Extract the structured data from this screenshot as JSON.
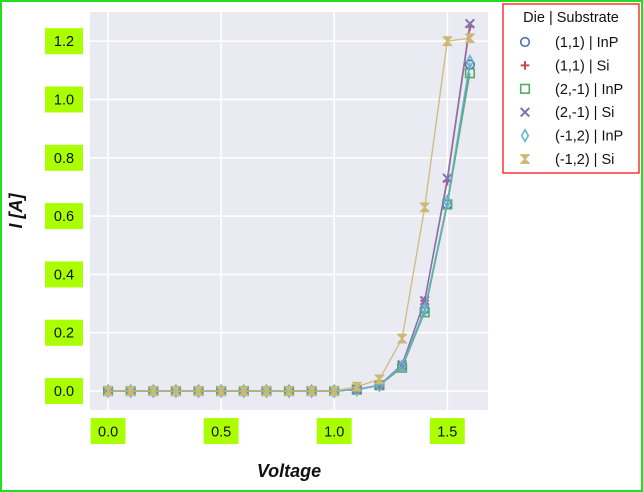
{
  "chart_data": {
    "type": "line",
    "title": "",
    "xlabel": "Voltage",
    "ylabel": "I [A]",
    "xlim": [
      -0.08,
      1.68
    ],
    "ylim": [
      -0.065,
      1.3
    ],
    "x_ticks": [
      "0.0",
      "0.5",
      "1.0",
      "1.5"
    ],
    "y_ticks": [
      "0.0",
      "0.2",
      "0.4",
      "0.6",
      "0.8",
      "1.0",
      "1.2"
    ],
    "x_tick_values": [
      0.0,
      0.5,
      1.0,
      1.5
    ],
    "y_tick_values": [
      0.0,
      0.2,
      0.4,
      0.6,
      0.8,
      1.0,
      1.2
    ],
    "grid": true,
    "legend_position": "outside-top-right",
    "legend_title": "Die | Substrate",
    "x": [
      0.0,
      0.1,
      0.2,
      0.3,
      0.4,
      0.5,
      0.6,
      0.7,
      0.8,
      0.9,
      1.0,
      1.1,
      1.2,
      1.3,
      1.4,
      1.5,
      1.6
    ],
    "series": [
      {
        "name": "(1,1) | InP",
        "marker": "circle",
        "color": "#4c72b0",
        "values": [
          0,
          0,
          0,
          0,
          0,
          0,
          0,
          0,
          0,
          0,
          0,
          0.005,
          0.02,
          0.085,
          0.28,
          0.64,
          1.12
        ]
      },
      {
        "name": "(1,1) | Si",
        "marker": "plus",
        "color": "#c44e52",
        "values": [
          0,
          0,
          0,
          0,
          0,
          0,
          0,
          0,
          0,
          0,
          0,
          0.005,
          0.02,
          0.09,
          0.31,
          0.72,
          1.25
        ]
      },
      {
        "name": "(2,-1) | InP",
        "marker": "square",
        "color": "#55a868",
        "values": [
          0,
          0,
          0,
          0,
          0,
          0,
          0,
          0,
          0,
          0,
          0,
          0.005,
          0.02,
          0.08,
          0.27,
          0.64,
          1.09
        ]
      },
      {
        "name": "(2,-1) | Si",
        "marker": "x",
        "color": "#8172b2",
        "values": [
          0,
          0,
          0,
          0,
          0,
          0,
          0,
          0,
          0,
          0,
          0,
          0.005,
          0.02,
          0.09,
          0.31,
          0.73,
          1.26
        ]
      },
      {
        "name": "(-1,2) | InP",
        "marker": "diamond",
        "color": "#64b5cd",
        "values": [
          0,
          0,
          0,
          0,
          0,
          0,
          0,
          0,
          0,
          0,
          0,
          0.005,
          0.02,
          0.085,
          0.28,
          0.65,
          1.13
        ]
      },
      {
        "name": "(-1,2) | Si",
        "marker": "hourglass",
        "color": "#ccb974",
        "values": [
          0,
          0,
          0,
          0,
          0,
          0,
          0,
          0,
          0,
          0,
          0,
          0.015,
          0.04,
          0.18,
          0.63,
          1.2,
          1.21
        ]
      }
    ],
    "colors": {
      "plot_background": "#eaeaf2",
      "grid": "#ffffff",
      "tick_label_highlight": "#aaff00",
      "legend_border": "#ff0000",
      "frame_border": "#22dd22"
    }
  }
}
